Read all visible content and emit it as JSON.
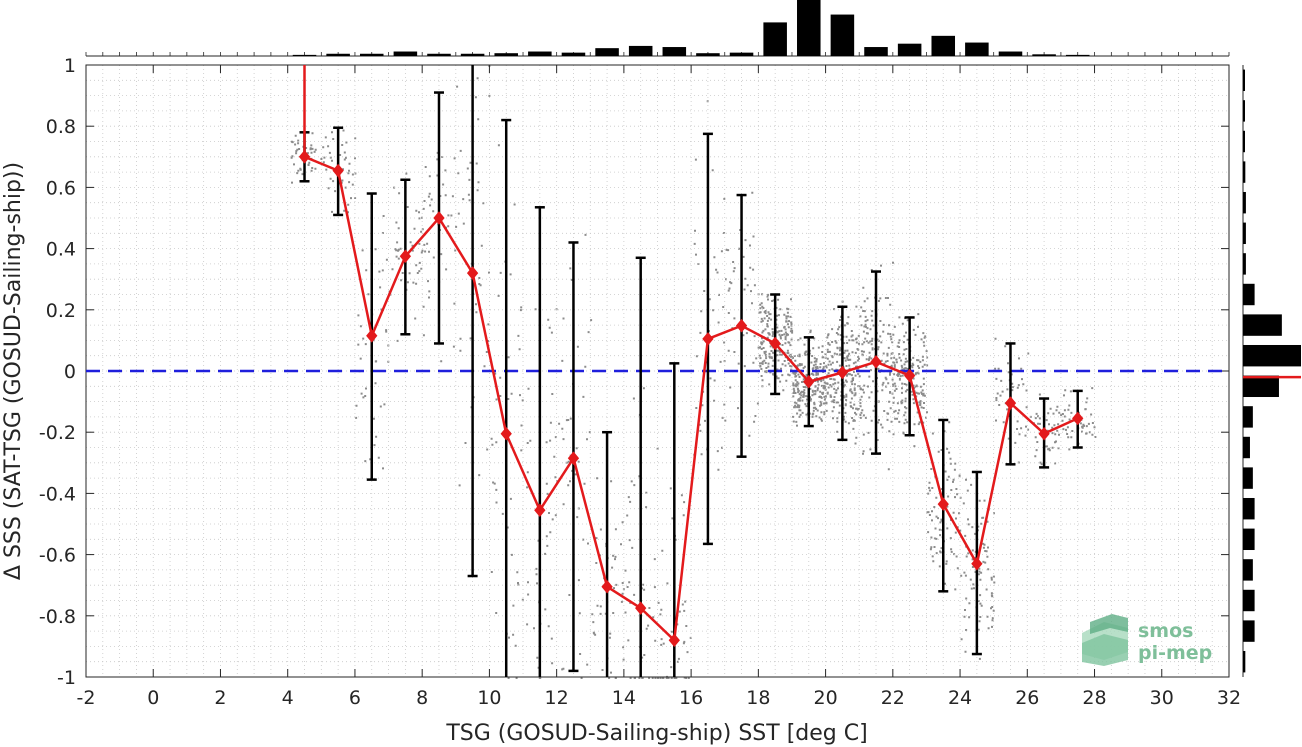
{
  "chart_data": {
    "type": "line",
    "xlabel": "TSG (GOSUD-Sailing-ship) SST [deg C]",
    "ylabel": "Δ SSS (SAT-TSG (GOSUD-Sailing-ship))",
    "xlim": [
      -2,
      32
    ],
    "ylim": [
      -1,
      1
    ],
    "x_ticks": [
      -2,
      0,
      2,
      4,
      6,
      8,
      10,
      12,
      14,
      16,
      18,
      20,
      22,
      24,
      26,
      28,
      30,
      32
    ],
    "y_ticks": [
      1,
      0.8,
      0.6,
      0.4,
      0.2,
      0,
      -0.2,
      -0.4,
      -0.6,
      -0.8,
      -1
    ],
    "grid": true,
    "reference_line": {
      "y": 0,
      "style": "dashed",
      "color": "#1f1fdc"
    },
    "series_color": "#e31a1c",
    "errorbar_color": "#000000",
    "scatter_color": "#8c8c8c",
    "series": [
      {
        "x": [
          4.5,
          5.5,
          6.5,
          7.5,
          8.5,
          9.5,
          10.5,
          11.5,
          12.5,
          13.5,
          14.5,
          15.5,
          16.5,
          17.5,
          18.5,
          19.5,
          20.5,
          21.5,
          22.5,
          23.5,
          24.5,
          25.5,
          26.5,
          27.5
        ],
        "values": [
          0.7,
          0.655,
          0.115,
          0.375,
          0.5,
          0.32,
          -0.205,
          -0.455,
          -0.285,
          -0.705,
          -0.775,
          -0.88,
          0.105,
          0.148,
          0.09,
          -0.035,
          -0.005,
          0.03,
          -0.015,
          -0.435,
          -0.63,
          -0.105,
          -0.205,
          -0.155
        ],
        "err_low": [
          0.62,
          0.51,
          -0.355,
          0.12,
          0.09,
          -0.67,
          -1.0,
          -1.0,
          -0.98,
          -1.0,
          -1.0,
          -1.0,
          -0.565,
          -0.28,
          -0.075,
          -0.18,
          -0.225,
          -0.27,
          -0.21,
          -0.72,
          -0.925,
          -0.305,
          -0.315,
          -0.25
        ],
        "err_high": [
          0.78,
          0.795,
          0.58,
          0.625,
          0.91,
          1.0,
          0.82,
          0.535,
          0.42,
          -0.2,
          0.37,
          0.025,
          0.775,
          0.575,
          0.25,
          0.11,
          0.21,
          0.325,
          0.175,
          -0.16,
          -0.33,
          0.09,
          -0.09,
          -0.065
        ]
      }
    ],
    "top_histogram": {
      "x": [
        4.5,
        5.5,
        6.5,
        7.5,
        8.5,
        9.5,
        10.5,
        11.5,
        12.5,
        13.5,
        14.5,
        15.5,
        16.5,
        17.5,
        18.5,
        19.5,
        20.5,
        21.5,
        22.5,
        23.5,
        24.5,
        25.5,
        26.5,
        27.5
      ],
      "values": [
        0.02,
        0.04,
        0.04,
        0.08,
        0.04,
        0.04,
        0.05,
        0.08,
        0.06,
        0.14,
        0.18,
        0.16,
        0.05,
        0.06,
        0.6,
        1.0,
        0.74,
        0.16,
        0.22,
        0.36,
        0.24,
        0.08,
        0.03,
        0.02
      ]
    },
    "right_histogram": {
      "y": [
        0.95,
        0.85,
        0.75,
        0.65,
        0.55,
        0.45,
        0.35,
        0.25,
        0.15,
        0.05,
        -0.05,
        -0.15,
        -0.25,
        -0.35,
        -0.45,
        -0.55,
        -0.65,
        -0.75,
        -0.85,
        -0.95
      ],
      "values": [
        0.02,
        0.03,
        0.03,
        0.04,
        0.05,
        0.05,
        0.05,
        0.2,
        0.67,
        1.0,
        0.62,
        0.17,
        0.12,
        0.17,
        0.2,
        0.2,
        0.17,
        0.2,
        0.2,
        0.04
      ],
      "median_line_y": -0.02
    }
  },
  "logo": {
    "line1": "smos",
    "line2": "pi-mep"
  }
}
